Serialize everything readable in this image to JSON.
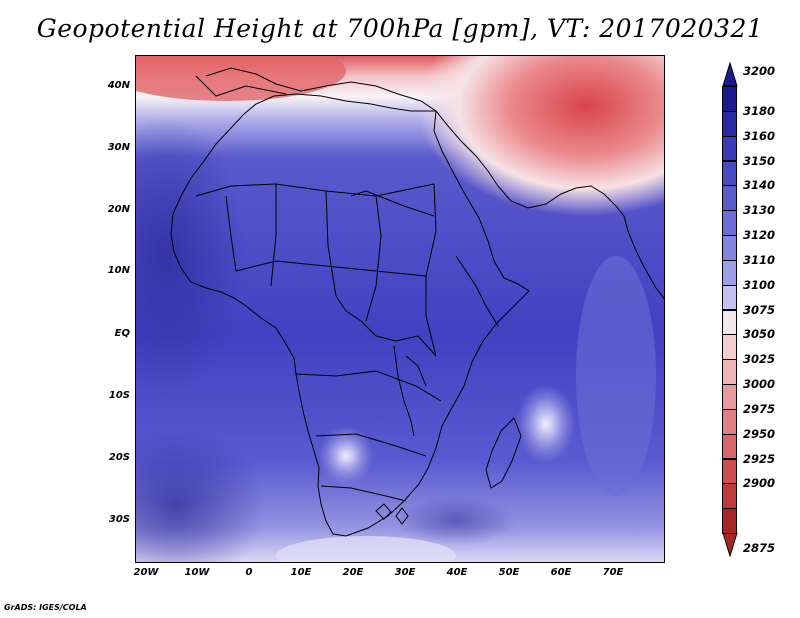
{
  "title": "Geopotential Height at 700hPa [gpm], VT: 2017020321",
  "credit": "GrADS: IGES/COLA",
  "y_axis_ticks": [
    "40N",
    "30N",
    "20N",
    "10N",
    "EQ",
    "10S",
    "20S",
    "30S"
  ],
  "x_axis_ticks": [
    "20W",
    "10W",
    "0",
    "10E",
    "20E",
    "30E",
    "40E",
    "50E",
    "60E",
    "70E"
  ],
  "colorbar_levels": [
    "3200",
    "3180",
    "3160",
    "3150",
    "3140",
    "3130",
    "3120",
    "3110",
    "3100",
    "3075",
    "3050",
    "3025",
    "3000",
    "2975",
    "2950",
    "2925",
    "2900",
    "2875"
  ],
  "colorbar_colors": [
    "#1c1a8e",
    "#2b2aa5",
    "#3b3ab8",
    "#4a49c4",
    "#5c5bcc",
    "#6f6ed6",
    "#8584df",
    "#9e9de7",
    "#c3c2f2",
    "#f2e8ea",
    "#f4cfd2",
    "#efb5b8",
    "#e89b9e",
    "#e08083",
    "#d7676a",
    "#cf4e52",
    "#c0393d",
    "#a82528"
  ],
  "colors": {
    "low_height": "#c0393d",
    "mid_height": "#f2f2fb",
    "high_height": "#3e3cbc"
  }
}
